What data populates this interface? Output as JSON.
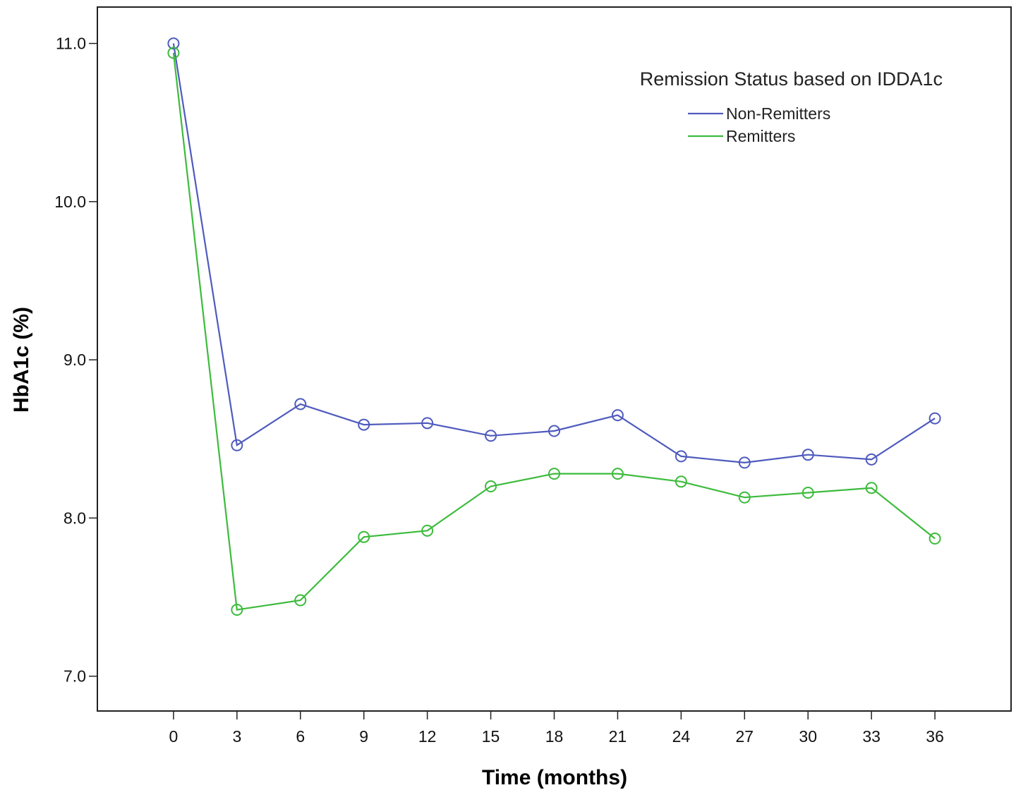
{
  "chart_data": {
    "type": "line",
    "xlabel": "Time (months)",
    "ylabel": "HbA1c (%)",
    "x": [
      0,
      3,
      6,
      9,
      12,
      15,
      18,
      21,
      24,
      27,
      30,
      33,
      36
    ],
    "x_tick_labels": [
      "0",
      "3",
      "6",
      "9",
      "12",
      "15",
      "18",
      "21",
      "24",
      "27",
      "30",
      "33",
      "36"
    ],
    "y_ticks": [
      7.0,
      8.0,
      9.0,
      10.0,
      11.0
    ],
    "y_tick_labels": [
      "7.0",
      "8.0",
      "9.0",
      "10.0",
      "11.0"
    ],
    "ylim": [
      6.78,
      11.23
    ],
    "xlim": [
      -3.6,
      39.6
    ],
    "grid": false,
    "legend": {
      "title": "Remission Status based on IDDA1c",
      "placement": "top-right"
    },
    "series": [
      {
        "name": "Non-Remitters",
        "color": "#4f5bbd",
        "marker": "open-circle",
        "values": [
          11.0,
          8.46,
          8.72,
          8.59,
          8.6,
          8.52,
          8.55,
          8.65,
          8.39,
          8.35,
          8.4,
          8.37,
          8.63
        ]
      },
      {
        "name": "Remitters",
        "color": "#3dbb3d",
        "marker": "open-circle",
        "values": [
          10.94,
          7.42,
          7.48,
          7.88,
          7.92,
          8.2,
          8.28,
          8.28,
          8.23,
          8.13,
          8.16,
          8.19,
          7.87
        ]
      }
    ]
  }
}
